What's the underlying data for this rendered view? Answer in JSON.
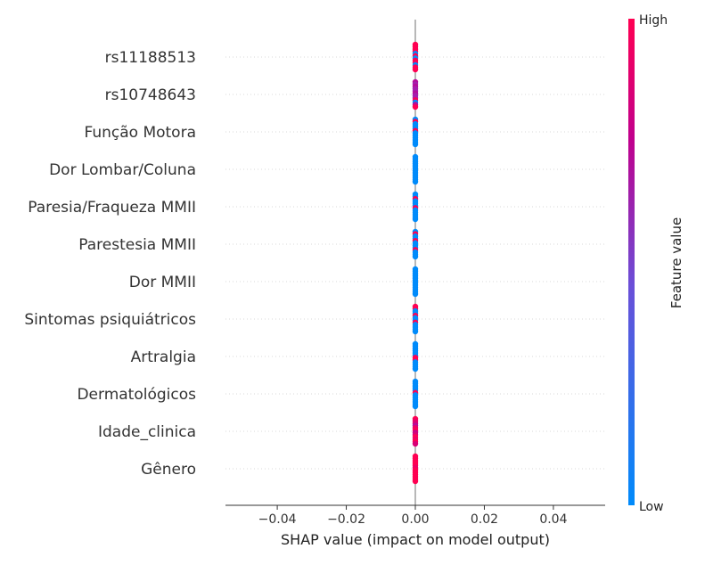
{
  "chart_data": {
    "type": "scatter",
    "subtype": "shap-beeswarm-summary",
    "xlabel": "SHAP value (impact on model output)",
    "xlim": [
      -0.055,
      0.055
    ],
    "xticks": [
      -0.04,
      -0.02,
      0.0,
      0.02,
      0.04
    ],
    "xtick_labels": [
      "−0.04",
      "−0.02",
      "0.00",
      "0.02",
      "0.04"
    ],
    "zero_line": 0.0,
    "features": [
      {
        "name": "rs11188513",
        "shap_values": [
          0,
          0,
          0,
          0,
          0,
          0,
          0,
          0,
          0,
          0,
          0,
          0
        ],
        "feature_values": [
          1,
          1,
          1,
          1,
          0,
          1,
          0,
          1,
          1,
          0,
          1,
          1
        ]
      },
      {
        "name": "rs10748643",
        "shap_values": [
          0,
          0,
          0,
          0,
          0,
          0,
          0,
          0,
          0,
          0,
          0,
          0
        ],
        "feature_values": [
          0.6,
          0.5,
          0.6,
          0.5,
          0.5,
          0.6,
          0.5,
          0.5,
          1,
          0,
          0.6,
          1
        ]
      },
      {
        "name": "Função Motora",
        "shap_values": [
          0,
          0,
          0,
          0,
          0,
          0,
          0,
          0,
          0,
          0,
          0,
          0
        ],
        "feature_values": [
          0,
          1,
          0,
          0,
          0,
          1,
          0,
          0,
          0,
          0,
          0,
          0
        ]
      },
      {
        "name": "Dor Lombar/Coluna",
        "shap_values": [
          0,
          0,
          0,
          0,
          0,
          0,
          0,
          0,
          0,
          0,
          0,
          0
        ],
        "feature_values": [
          0,
          0,
          0,
          0,
          0,
          0,
          0,
          0,
          0,
          0,
          0,
          0
        ]
      },
      {
        "name": "Paresia/Fraqueza MMII",
        "shap_values": [
          0,
          0,
          0,
          0,
          0,
          0,
          0,
          0,
          0,
          0,
          0,
          0
        ],
        "feature_values": [
          0,
          0,
          1,
          0,
          0,
          0,
          1,
          0,
          0,
          0,
          0,
          0
        ]
      },
      {
        "name": "Parestesia MMII",
        "shap_values": [
          0,
          0,
          0,
          0,
          0,
          0,
          0,
          0,
          0,
          0,
          0,
          0
        ],
        "feature_values": [
          0,
          1,
          0,
          0,
          1,
          0,
          0,
          0,
          1,
          0,
          0,
          0
        ]
      },
      {
        "name": "Dor MMII",
        "shap_values": [
          0,
          0,
          0,
          0,
          0,
          0,
          0,
          0,
          0,
          0,
          0,
          0
        ],
        "feature_values": [
          0,
          0,
          0,
          0,
          0,
          0,
          0,
          0,
          0,
          0,
          0,
          0
        ]
      },
      {
        "name": "Sintomas psiquiátricos",
        "shap_values": [
          0,
          0,
          0,
          0,
          0,
          0,
          0,
          0,
          0,
          0,
          0,
          0
        ],
        "feature_values": [
          1,
          1,
          0,
          0,
          1,
          0,
          0,
          1,
          0,
          0,
          0,
          0
        ]
      },
      {
        "name": "Artralgia",
        "shap_values": [
          0,
          0,
          0,
          0,
          0,
          0,
          0,
          0,
          0,
          0,
          0,
          0
        ],
        "feature_values": [
          0,
          0,
          0,
          0,
          0,
          0,
          1,
          1,
          0,
          0,
          0,
          0
        ]
      },
      {
        "name": "Dermatológicos",
        "shap_values": [
          0,
          0,
          0,
          0,
          0,
          0,
          0,
          0,
          0,
          0,
          0,
          0
        ],
        "feature_values": [
          0,
          0,
          0,
          0,
          0,
          1,
          0,
          0,
          0,
          0,
          0,
          0
        ]
      },
      {
        "name": "Idade_clinica",
        "shap_values": [
          0,
          0,
          0,
          0,
          0,
          0,
          0,
          0,
          0,
          0,
          0,
          0
        ],
        "feature_values": [
          1,
          0.9,
          0.8,
          0.6,
          0.9,
          1,
          0.7,
          0.8,
          1,
          0.9,
          1,
          0.8
        ]
      },
      {
        "name": "Gênero",
        "shap_values": [
          0,
          0,
          0,
          0,
          0,
          0,
          0,
          0,
          0,
          0,
          0,
          0
        ],
        "feature_values": [
          1,
          1,
          1,
          1,
          1,
          0.9,
          1,
          1,
          1,
          1,
          1,
          1
        ]
      }
    ],
    "colorbar": {
      "label": "Feature value",
      "high_label": "High",
      "low_label": "Low",
      "colors": [
        "#008bfb",
        "#8a3ecf",
        "#c0008d",
        "#ff0052"
      ]
    },
    "grid": false,
    "gridlines": "dotted-per-row"
  }
}
